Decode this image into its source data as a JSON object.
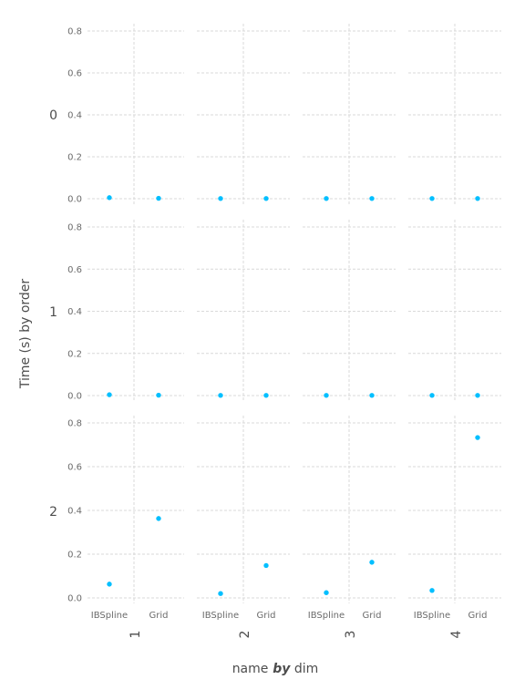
{
  "chart_data": {
    "type": "scatter",
    "ylabel": "Time (s) by order",
    "xlabel_parts": [
      "name",
      "by",
      "dim"
    ],
    "row_labels": [
      "0",
      "1",
      "2"
    ],
    "col_labels": [
      "1",
      "2",
      "3",
      "4"
    ],
    "categories": [
      "IBSpline",
      "Grid"
    ],
    "y_ticks": [
      "0.0",
      "0.2",
      "0.4",
      "0.6",
      "0.8"
    ],
    "ylim": [
      0,
      0.85
    ],
    "point_color": "#00bfff",
    "grid": true,
    "panels": [
      [
        {
          "IBSpline": 0.005,
          "Grid": 0.002
        },
        {
          "IBSpline": 0.001,
          "Grid": 0.001
        },
        {
          "IBSpline": 0.001,
          "Grid": 0.001
        },
        {
          "IBSpline": 0.001,
          "Grid": 0.001
        }
      ],
      [
        {
          "IBSpline": 0.004,
          "Grid": 0.002
        },
        {
          "IBSpline": 0.001,
          "Grid": 0.001
        },
        {
          "IBSpline": 0.001,
          "Grid": 0.001
        },
        {
          "IBSpline": 0.001,
          "Grid": 0.001
        }
      ],
      [
        {
          "IBSpline": 0.063,
          "Grid": 0.363
        },
        {
          "IBSpline": 0.02,
          "Grid": 0.148
        },
        {
          "IBSpline": 0.024,
          "Grid": 0.163
        },
        {
          "IBSpline": 0.034,
          "Grid": 0.733
        }
      ]
    ]
  }
}
